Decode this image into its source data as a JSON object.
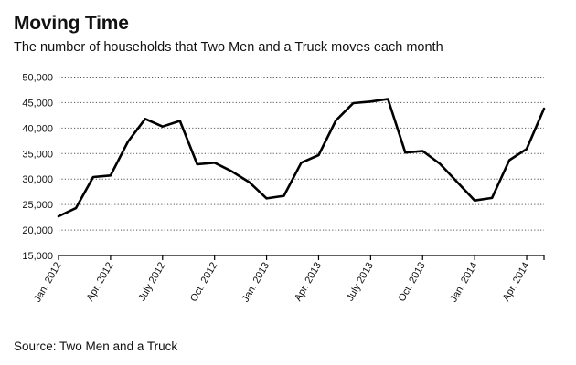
{
  "chart_data": {
    "type": "line",
    "title": "Moving Time",
    "subtitle": "The number of households that Two Men and a Truck moves each month",
    "source": "Source: Two Men and a Truck",
    "xlabel": "",
    "ylabel": "",
    "ylim": [
      15000,
      50000
    ],
    "y_ticks": [
      15000,
      20000,
      25000,
      30000,
      35000,
      40000,
      45000,
      50000
    ],
    "y_tick_labels": [
      "15,000",
      "20,000",
      "25,000",
      "30,000",
      "35,000",
      "40,000",
      "45,000",
      "50,000"
    ],
    "x_tick_labels": [
      "Jan. 2012",
      "Apr. 2012",
      "July 2012",
      "Oct. 2012",
      "Jan. 2013",
      "Apr. 2013",
      "July 2013",
      "Oct. 2013",
      "Jan. 2014",
      "Apr. 2014"
    ],
    "x_tick_every": 3,
    "grid": "horizontal dotted",
    "line_color": "#000000",
    "x": [
      "2012-01",
      "2012-02",
      "2012-03",
      "2012-04",
      "2012-05",
      "2012-06",
      "2012-07",
      "2012-08",
      "2012-09",
      "2012-10",
      "2012-11",
      "2012-12",
      "2013-01",
      "2013-02",
      "2013-03",
      "2013-04",
      "2013-05",
      "2013-06",
      "2013-07",
      "2013-08",
      "2013-09",
      "2013-10",
      "2013-11",
      "2013-12",
      "2014-01",
      "2014-02",
      "2014-03",
      "2014-04",
      "2014-05"
    ],
    "values": [
      22700,
      24300,
      30400,
      30700,
      37300,
      41800,
      40300,
      41400,
      32900,
      33200,
      31500,
      29400,
      26200,
      26700,
      33200,
      34700,
      41500,
      44900,
      45200,
      45700,
      35200,
      35500,
      33000,
      29400,
      25800,
      26300,
      33700,
      35900,
      43800
    ]
  }
}
